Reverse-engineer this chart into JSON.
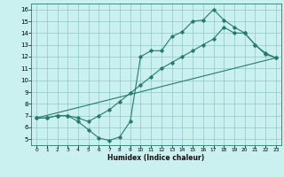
{
  "title": "",
  "xlabel": "Humidex (Indice chaleur)",
  "background_color": "#caf0f0",
  "line_color": "#2a7a6a",
  "grid_color": "#8ec8c8",
  "xlim": [
    -0.5,
    23.5
  ],
  "ylim": [
    4.5,
    16.5
  ],
  "xticks": [
    0,
    1,
    2,
    3,
    4,
    5,
    6,
    7,
    8,
    9,
    10,
    11,
    12,
    13,
    14,
    15,
    16,
    17,
    18,
    19,
    20,
    21,
    22,
    23
  ],
  "yticks": [
    5,
    6,
    7,
    8,
    9,
    10,
    11,
    12,
    13,
    14,
    15,
    16
  ],
  "curve1_x": [
    0,
    1,
    2,
    3,
    4,
    5,
    6,
    7,
    8,
    9,
    10,
    11,
    12,
    13,
    14,
    15,
    16,
    17,
    18,
    19,
    20,
    21,
    22,
    23
  ],
  "curve1_y": [
    6.8,
    6.8,
    7.0,
    7.0,
    6.5,
    5.8,
    5.1,
    4.9,
    5.2,
    6.5,
    12.0,
    12.5,
    12.5,
    13.7,
    14.1,
    15.0,
    15.1,
    16.0,
    15.1,
    14.5,
    14.0,
    13.0,
    12.2,
    11.9
  ],
  "curve2_x": [
    0,
    1,
    2,
    3,
    4,
    5,
    6,
    7,
    8,
    9,
    10,
    11,
    12,
    13,
    14,
    15,
    16,
    17,
    18,
    19,
    20,
    21,
    22,
    23
  ],
  "curve2_y": [
    6.8,
    6.8,
    7.0,
    7.0,
    6.8,
    6.5,
    7.0,
    7.5,
    8.2,
    8.9,
    9.6,
    10.3,
    11.0,
    11.5,
    12.0,
    12.5,
    13.0,
    13.5,
    14.5,
    14.0,
    14.0,
    13.0,
    12.3,
    11.9
  ],
  "curve3_x": [
    0,
    23
  ],
  "curve3_y": [
    6.8,
    11.9
  ]
}
